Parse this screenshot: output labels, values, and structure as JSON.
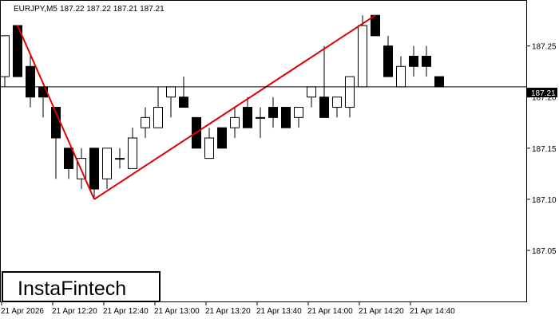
{
  "header": {
    "symbol": "EURJPY,M5",
    "ohlc": "187.22 187.22 187.21 187.21"
  },
  "logo": {
    "text": "InstaFintech"
  },
  "price_label": {
    "text": "187.21"
  },
  "colors": {
    "background": "#ffffff",
    "axis": "#000000",
    "bull_body": "#ffffff",
    "bear_body": "#000000",
    "pattern_line": "#e00000",
    "price_label_bg": "#000000",
    "price_label_text": "#ffffff"
  },
  "chart_data": {
    "type": "candlestick",
    "instrument": "EURJPY",
    "timeframe": "M5",
    "ylim": [
      187.0,
      187.295
    ],
    "y_ticks": [
      187.25,
      187.2,
      187.15,
      187.1,
      187.05
    ],
    "y_tick_labels": [
      "187.25",
      "187.20",
      "187.15",
      "187.10",
      "187.05"
    ],
    "x_tick_labels": [
      "21 Apr 2026",
      "21 Apr 12:20",
      "21 Apr 12:40",
      "21 Apr 13:00",
      "21 Apr 13:20",
      "21 Apr 13:40",
      "21 Apr 14:00",
      "21 Apr 14:20",
      "21 Apr 14:40"
    ],
    "x_tick_candle_index": [
      0,
      4,
      8,
      12,
      16,
      20,
      24,
      28,
      32
    ],
    "current_price": 187.21,
    "candles": [
      {
        "time": "12:05",
        "open": 187.22,
        "high": 187.26,
        "low": 187.21,
        "close": 187.26
      },
      {
        "time": "12:10",
        "open": 187.27,
        "high": 187.27,
        "low": 187.22,
        "close": 187.22
      },
      {
        "time": "12:15",
        "open": 187.23,
        "high": 187.24,
        "low": 187.19,
        "close": 187.2
      },
      {
        "time": "12:20",
        "open": 187.21,
        "high": 187.21,
        "low": 187.18,
        "close": 187.2
      },
      {
        "time": "12:25",
        "open": 187.19,
        "high": 187.19,
        "low": 187.12,
        "close": 187.16
      },
      {
        "time": "12:30",
        "open": 187.15,
        "high": 187.15,
        "low": 187.12,
        "close": 187.13
      },
      {
        "time": "12:35",
        "open": 187.12,
        "high": 187.15,
        "low": 187.11,
        "close": 187.14
      },
      {
        "time": "12:40",
        "open": 187.15,
        "high": 187.15,
        "low": 187.1,
        "close": 187.11
      },
      {
        "time": "12:45",
        "open": 187.12,
        "high": 187.15,
        "low": 187.11,
        "close": 187.15
      },
      {
        "time": "12:50",
        "open": 187.14,
        "high": 187.15,
        "low": 187.13,
        "close": 187.14
      },
      {
        "time": "12:55",
        "open": 187.13,
        "high": 187.17,
        "low": 187.13,
        "close": 187.16
      },
      {
        "time": "13:00",
        "open": 187.17,
        "high": 187.19,
        "low": 187.16,
        "close": 187.18
      },
      {
        "time": "13:05",
        "open": 187.17,
        "high": 187.21,
        "low": 187.17,
        "close": 187.19
      },
      {
        "time": "13:10",
        "open": 187.2,
        "high": 187.21,
        "low": 187.18,
        "close": 187.21
      },
      {
        "time": "13:15",
        "open": 187.2,
        "high": 187.22,
        "low": 187.19,
        "close": 187.19
      },
      {
        "time": "13:20",
        "open": 187.18,
        "high": 187.18,
        "low": 187.15,
        "close": 187.15
      },
      {
        "time": "13:25",
        "open": 187.14,
        "high": 187.17,
        "low": 187.14,
        "close": 187.16
      },
      {
        "time": "13:30",
        "open": 187.17,
        "high": 187.17,
        "low": 187.15,
        "close": 187.15
      },
      {
        "time": "13:35",
        "open": 187.17,
        "high": 187.19,
        "low": 187.16,
        "close": 187.18
      },
      {
        "time": "13:40",
        "open": 187.19,
        "high": 187.2,
        "low": 187.17,
        "close": 187.17
      },
      {
        "time": "13:45",
        "open": 187.18,
        "high": 187.19,
        "low": 187.16,
        "close": 187.18
      },
      {
        "time": "13:50",
        "open": 187.19,
        "high": 187.2,
        "low": 187.17,
        "close": 187.18
      },
      {
        "time": "13:55",
        "open": 187.19,
        "high": 187.19,
        "low": 187.17,
        "close": 187.17
      },
      {
        "time": "14:00",
        "open": 187.18,
        "high": 187.19,
        "low": 187.17,
        "close": 187.19
      },
      {
        "time": "14:05",
        "open": 187.2,
        "high": 187.21,
        "low": 187.19,
        "close": 187.21
      },
      {
        "time": "14:10",
        "open": 187.2,
        "high": 187.25,
        "low": 187.18,
        "close": 187.18
      },
      {
        "time": "14:15",
        "open": 187.19,
        "high": 187.2,
        "low": 187.18,
        "close": 187.2
      },
      {
        "time": "14:20",
        "open": 187.19,
        "high": 187.22,
        "low": 187.18,
        "close": 187.22
      },
      {
        "time": "14:25",
        "open": 187.21,
        "high": 187.28,
        "low": 187.21,
        "close": 187.27
      },
      {
        "time": "14:30",
        "open": 187.28,
        "high": 187.28,
        "low": 187.26,
        "close": 187.26
      },
      {
        "time": "14:35",
        "open": 187.25,
        "high": 187.26,
        "low": 187.22,
        "close": 187.22
      },
      {
        "time": "14:40",
        "open": 187.21,
        "high": 187.24,
        "low": 187.21,
        "close": 187.23
      },
      {
        "time": "14:45",
        "open": 187.24,
        "high": 187.25,
        "low": 187.22,
        "close": 187.23
      },
      {
        "time": "14:50",
        "open": 187.24,
        "high": 187.25,
        "low": 187.22,
        "close": 187.23
      },
      {
        "time": "14:55",
        "open": 187.22,
        "high": 187.22,
        "low": 187.21,
        "close": 187.21
      }
    ],
    "pattern_lines": [
      {
        "from": {
          "candle_index": 1,
          "price": 187.27
        },
        "to": {
          "candle_index": 7,
          "price": 187.1
        }
      },
      {
        "from": {
          "candle_index": 7,
          "price": 187.1
        },
        "to": {
          "candle_index": 29,
          "price": 187.28
        }
      }
    ]
  }
}
